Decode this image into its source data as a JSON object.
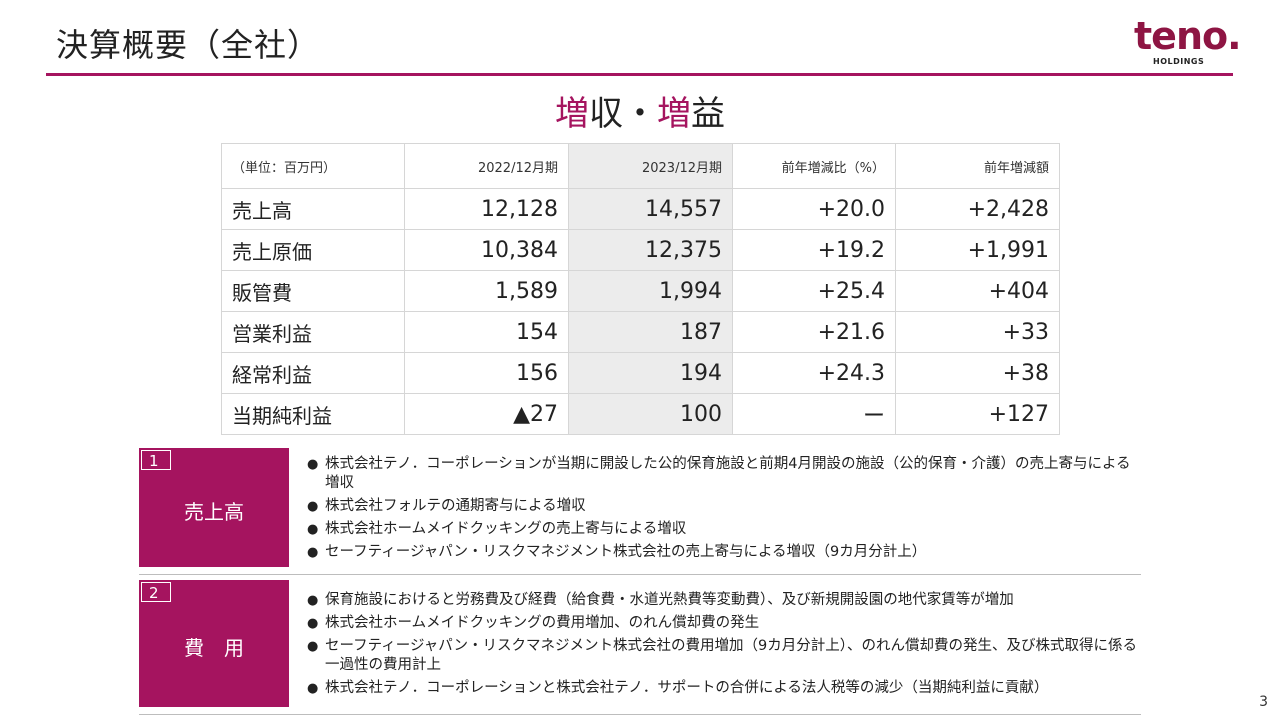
{
  "header": {
    "title": "決算概要（全社）",
    "logo_text": "teno.",
    "logo_sub": "HOLDINGS"
  },
  "headline": {
    "part1_accent": "増",
    "part1_rest": "収・",
    "part2_accent": "増",
    "part2_rest": "益"
  },
  "table": {
    "columns": [
      "（単位：百万円）",
      "2022/12月期",
      "2023/12月期",
      "前年増減比（%）",
      "前年増減額"
    ],
    "rows": [
      [
        "売上高",
        "12,128",
        "14,557",
        "+20.0",
        "+2,428"
      ],
      [
        "売上原価",
        "10,384",
        "12,375",
        "+19.2",
        "+1,991"
      ],
      [
        "販管費",
        "1,589",
        "1,994",
        "+25.4",
        "+404"
      ],
      [
        "営業利益",
        "154",
        "187",
        "+21.6",
        "+33"
      ],
      [
        "経常利益",
        "156",
        "194",
        "+24.3",
        "+38"
      ],
      [
        "当期純利益",
        "▲27",
        "100",
        "ー",
        "+127"
      ]
    ]
  },
  "sections": [
    {
      "number": "1",
      "label": "売上高",
      "bullets": [
        "株式会社テノ．コーポレーションが当期に開設した公的保育施設と前期4月開設の施設（公的保育・介護）の売上寄与による増収",
        "株式会社フォルテの通期寄与による増収",
        "株式会社ホームメイドクッキングの売上寄与による増収",
        "セーフティージャパン・リスクマネジメント株式会社の売上寄与による増収（9カ月分計上）"
      ]
    },
    {
      "number": "2",
      "label": "費　用",
      "bullets": [
        "保育施設におけると労務費及び経費（給食費・水道光熱費等変動費）、及び新規開設園の地代家賃等が増加",
        "株式会社ホームメイドクッキングの費用増加、のれん償却費の発生",
        "セーフティージャパン・リスクマネジメント株式会社の費用増加（9カ月分計上）、のれん償却費の発生、及び株式取得に係る一過性の費用計上",
        "株式会社テノ．コーポレーションと株式会社テノ．サポートの合併による法人税等の減少（当期純利益に貢献）"
      ]
    }
  ],
  "colors": {
    "accent": "#a5145f",
    "logo": "#8e1543",
    "shade": "#ececec"
  },
  "page_number": "3"
}
